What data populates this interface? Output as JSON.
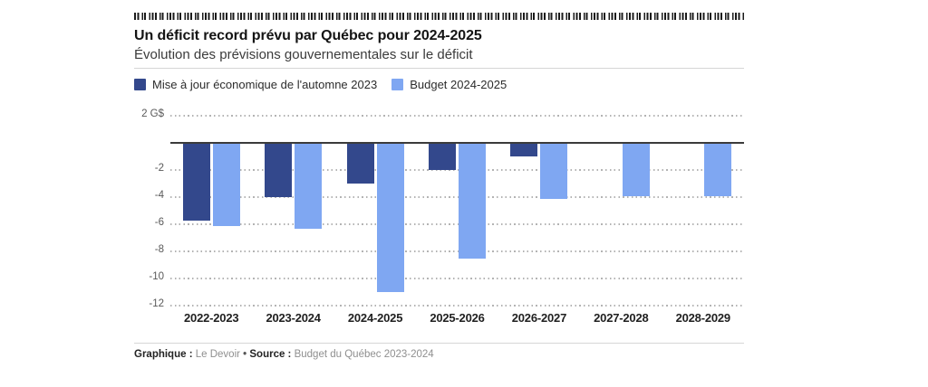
{
  "header": {
    "title": "Un déficit record prévu par Québec pour 2024-2025",
    "subtitle": "Évolution des prévisions gouvernementales sur le déficit"
  },
  "footer": {
    "graphic_label": "Graphique : ",
    "graphic_value": "Le Devoir",
    "separator": " • ",
    "source_label": "Source : ",
    "source_value": "Budget du Québec 2023-2024"
  },
  "chart_data": {
    "type": "bar",
    "title": "Un déficit record prévu par Québec pour 2024-2025",
    "subtitle": "Évolution des prévisions gouvernementales sur le déficit",
    "unit": "G$",
    "categories": [
      "2022-2023",
      "2023-2024",
      "2024-2025",
      "2025-2026",
      "2026-2027",
      "2027-2028",
      "2028-2029"
    ],
    "series": [
      {
        "name": "Mise à jour économique de l'automne 2023",
        "color": "#33488C",
        "values": [
          -5.7,
          -4.0,
          -3.0,
          -2.0,
          -1.0,
          null,
          null
        ]
      },
      {
        "name": "Budget 2024-2025",
        "color": "#7FA7F2",
        "values": [
          -6.1,
          -6.3,
          -11.0,
          -8.5,
          -4.1,
          -3.9,
          -3.9
        ]
      }
    ],
    "ylim": [
      -12,
      2
    ],
    "yticks": [
      {
        "value": 2,
        "label": "2 G$"
      },
      {
        "value": 0,
        "label": ""
      },
      {
        "value": -2,
        "label": "-2"
      },
      {
        "value": -4,
        "label": "-4"
      },
      {
        "value": -6,
        "label": "-6"
      },
      {
        "value": -8,
        "label": "-8"
      },
      {
        "value": -10,
        "label": "-10"
      },
      {
        "value": -12,
        "label": "-12"
      }
    ],
    "grid": "horizontal-dotted",
    "legend_position": "top-left"
  }
}
